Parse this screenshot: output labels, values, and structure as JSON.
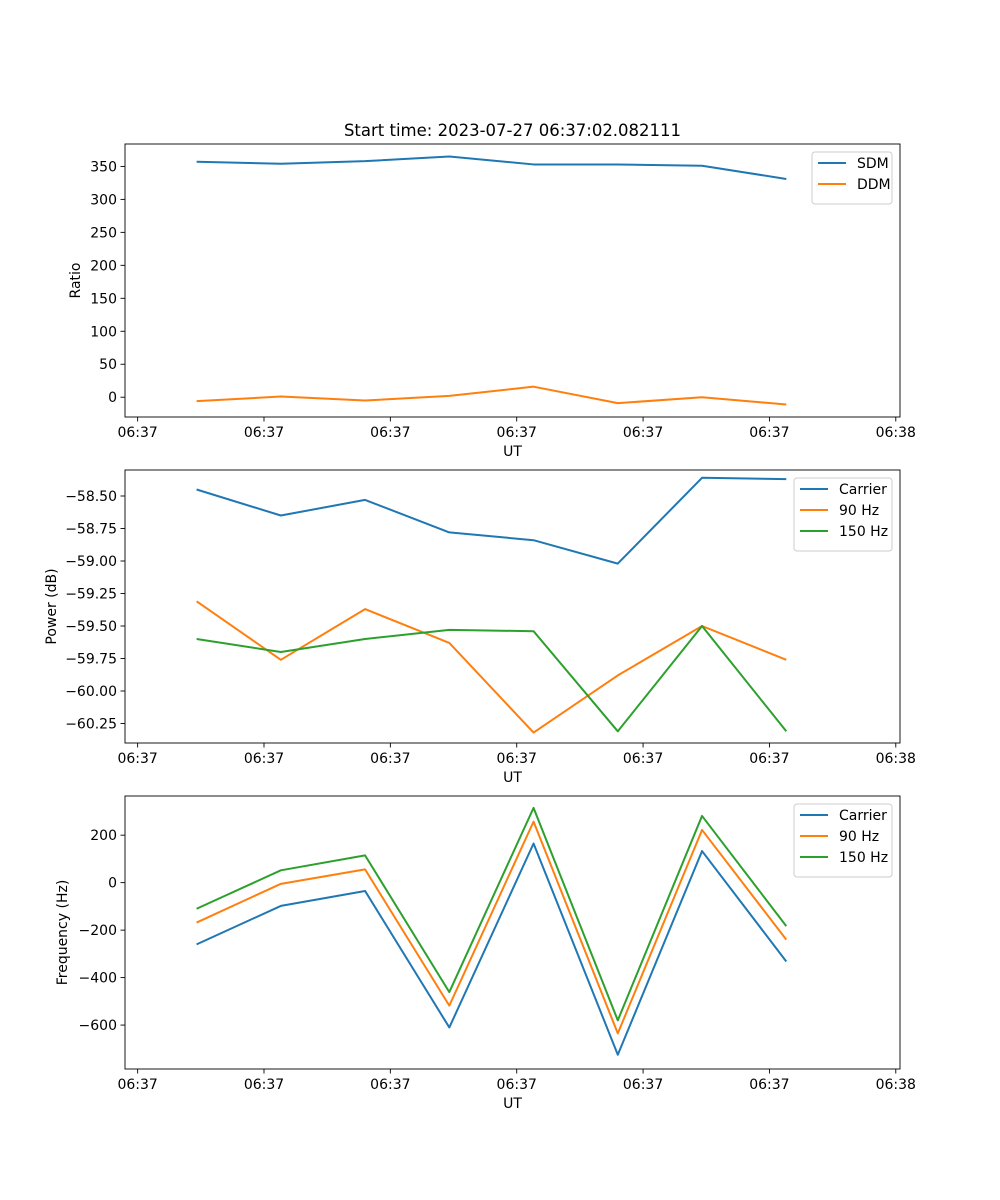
{
  "figure_title": "Start time: 2023-07-27 06:37:02.082111",
  "chart_data": [
    {
      "type": "line",
      "title": "Start time: 2023-07-27 06:37:02.082111",
      "xlabel": "UT",
      "ylabel": "Ratio",
      "x": [
        1,
        2,
        3,
        4,
        5,
        6,
        7,
        8
      ],
      "xlim": [
        0.15,
        9.35
      ],
      "x_ticks": [
        0.3,
        1.8,
        3.3,
        4.8,
        6.3,
        7.8,
        9.3
      ],
      "x_tick_labels": [
        "06:37",
        "06:37",
        "06:37",
        "06:37",
        "06:37",
        "06:37",
        "06:38"
      ],
      "ylim": [
        -30,
        384
      ],
      "y_ticks": [
        0,
        50,
        100,
        150,
        200,
        250,
        300,
        350
      ],
      "y_tick_labels": [
        "0",
        "50",
        "100",
        "150",
        "200",
        "250",
        "300",
        "350"
      ],
      "legend_position": "top-right",
      "series": [
        {
          "name": "SDM",
          "color": "#1f77b4",
          "values": [
            357,
            354,
            358,
            365,
            353,
            353,
            351,
            331
          ]
        },
        {
          "name": "DDM",
          "color": "#ff7f0e",
          "values": [
            -6,
            1,
            -5,
            2,
            16,
            -9,
            0,
            -11
          ]
        }
      ]
    },
    {
      "type": "line",
      "title": "",
      "xlabel": "UT",
      "ylabel": "Power (dB)",
      "x": [
        1,
        2,
        3,
        4,
        5,
        6,
        7,
        8
      ],
      "xlim": [
        0.15,
        9.35
      ],
      "x_ticks": [
        0.3,
        1.8,
        3.3,
        4.8,
        6.3,
        7.8,
        9.3
      ],
      "x_tick_labels": [
        "06:37",
        "06:37",
        "06:37",
        "06:37",
        "06:37",
        "06:37",
        "06:38"
      ],
      "ylim": [
        -60.4,
        -58.3
      ],
      "y_ticks": [
        -58.5,
        -58.75,
        -59.0,
        -59.25,
        -59.5,
        -59.75,
        -60.0,
        -60.25
      ],
      "y_tick_labels": [
        "−58.50",
        "−58.75",
        "−59.00",
        "−59.25",
        "−59.50",
        "−59.75",
        "−60.00",
        "−60.25"
      ],
      "legend_position": "top-right",
      "series": [
        {
          "name": "Carrier",
          "color": "#1f77b4",
          "values": [
            -58.45,
            -58.65,
            -58.53,
            -58.78,
            -58.84,
            -59.02,
            -58.36,
            -58.37
          ]
        },
        {
          "name": "90 Hz",
          "color": "#ff7f0e",
          "values": [
            -59.31,
            -59.76,
            -59.37,
            -59.63,
            -60.32,
            -59.88,
            -59.5,
            -59.76
          ]
        },
        {
          "name": "150 Hz",
          "color": "#2ca02c",
          "values": [
            -59.6,
            -59.7,
            -59.6,
            -59.53,
            -59.54,
            -60.31,
            -59.5,
            -60.31
          ]
        }
      ]
    },
    {
      "type": "line",
      "title": "",
      "xlabel": "UT",
      "ylabel": "Frequency (Hz)",
      "x": [
        1,
        2,
        3,
        4,
        5,
        6,
        7,
        8
      ],
      "xlim": [
        0.15,
        9.35
      ],
      "x_ticks": [
        0.3,
        1.8,
        3.3,
        4.8,
        6.3,
        7.8,
        9.3
      ],
      "x_tick_labels": [
        "06:37",
        "06:37",
        "06:37",
        "06:37",
        "06:37",
        "06:37",
        "06:38"
      ],
      "ylim": [
        -785,
        365
      ],
      "y_ticks": [
        200,
        0,
        -200,
        -400,
        -600
      ],
      "y_tick_labels": [
        "200",
        "0",
        "−200",
        "−400",
        "−600"
      ],
      "legend_position": "top-right",
      "series": [
        {
          "name": "Carrier",
          "color": "#1f77b4",
          "values": [
            -260,
            -98,
            -35,
            -610,
            165,
            -725,
            133,
            -332
          ]
        },
        {
          "name": "90 Hz",
          "color": "#ff7f0e",
          "values": [
            -168,
            -5,
            56,
            -518,
            257,
            -635,
            222,
            -240
          ]
        },
        {
          "name": "150 Hz",
          "color": "#2ca02c",
          "values": [
            -110,
            52,
            115,
            -461,
            315,
            -580,
            281,
            -183
          ]
        }
      ]
    }
  ]
}
